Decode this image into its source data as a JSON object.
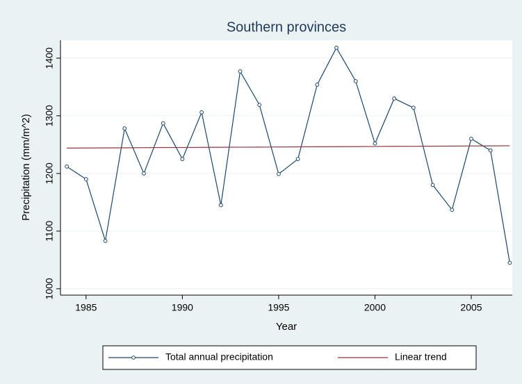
{
  "chart_data": {
    "type": "line",
    "title": "Southern provinces",
    "xlabel": "Year",
    "ylabel": "Precipitation (mm/m^2)",
    "x": [
      1984,
      1985,
      1986,
      1987,
      1988,
      1989,
      1990,
      1991,
      1992,
      1993,
      1994,
      1995,
      1996,
      1997,
      1998,
      1999,
      2000,
      2001,
      2002,
      2003,
      2004,
      2005,
      2006,
      2007
    ],
    "series": [
      {
        "name": "Total annual precipitation",
        "color": "#1a476f",
        "markers": true,
        "values": [
          1212,
          1190,
          1083,
          1278,
          1200,
          1287,
          1225,
          1306,
          1145,
          1377,
          1319,
          1199,
          1225,
          1354,
          1418,
          1360,
          1252,
          1330,
          1314,
          1180,
          1137,
          1260,
          1240,
          1045
        ]
      },
      {
        "name": "Linear trend",
        "color": "#90353b",
        "markers": false,
        "values": [
          1244.0,
          1244.2,
          1244.3,
          1244.5,
          1244.7,
          1244.9,
          1245.0,
          1245.2,
          1245.4,
          1245.6,
          1245.7,
          1245.9,
          1246.1,
          1246.3,
          1246.4,
          1246.6,
          1246.8,
          1247.0,
          1247.1,
          1247.3,
          1247.5,
          1247.7,
          1247.8,
          1248.0
        ]
      }
    ],
    "xlim": [
      1983.67,
      2007.13
    ],
    "xticks": [
      1985,
      1990,
      1995,
      2000,
      2005
    ],
    "ylim": [
      989,
      1431
    ],
    "yticks": [
      1000,
      1100,
      1200,
      1300,
      1400
    ],
    "grid": true,
    "legend": "bottom"
  }
}
